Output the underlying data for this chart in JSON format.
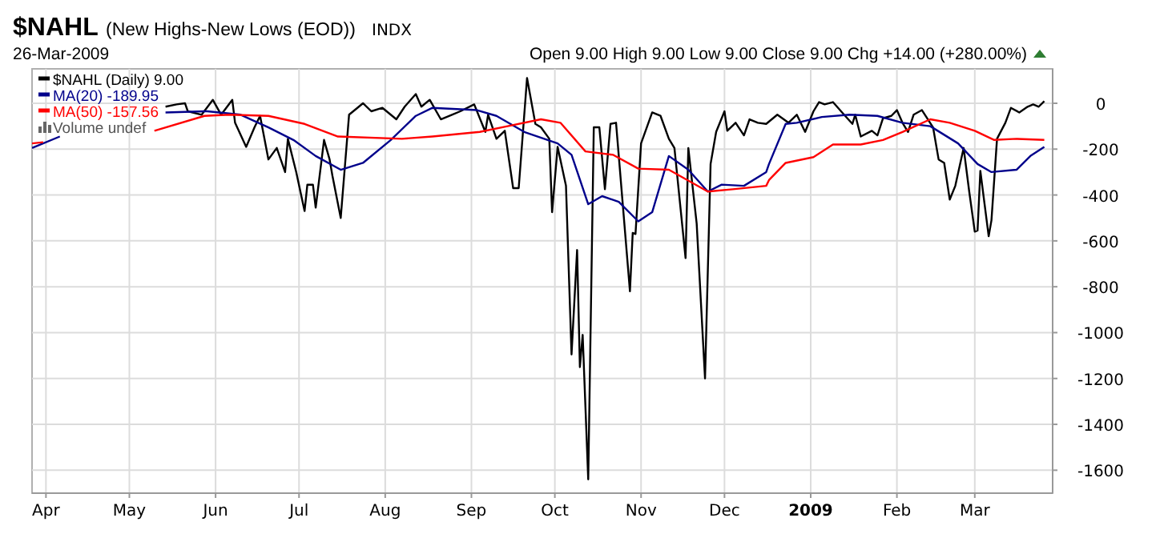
{
  "chart_data": {
    "type": "line",
    "title": "$NAHL",
    "subtitle": "(New Highs-New Lows (EOD))",
    "annotations": [
      "INDX",
      "26-Mar-2009",
      "Open 9.00 High 9.00 Low 9.00 Close 9.00 Chg +14.00 (+280.00%)",
      "Volume undef"
    ],
    "xlim": [
      "2008-03-27",
      "2009-03-29"
    ],
    "xticks": [
      {
        "value": "2008-04-01",
        "label": "Apr"
      },
      {
        "value": "2008-05-01",
        "label": "May"
      },
      {
        "value": "2008-06-01",
        "label": "Jun"
      },
      {
        "value": "2008-07-01",
        "label": "Jul"
      },
      {
        "value": "2008-08-01",
        "label": "Aug"
      },
      {
        "value": "2008-09-01",
        "label": "Sep"
      },
      {
        "value": "2008-10-01",
        "label": "Oct"
      },
      {
        "value": "2008-11-01",
        "label": "Nov"
      },
      {
        "value": "2008-12-01",
        "label": "Dec"
      },
      {
        "value": "2009-01-01",
        "label": "2009"
      },
      {
        "value": "2009-02-01",
        "label": "Feb"
      },
      {
        "value": "2009-03-01",
        "label": "Mar"
      }
    ],
    "ylim": [
      -1700,
      150
    ],
    "yticks": [
      0,
      -200,
      -400,
      -600,
      -800,
      -1000,
      -1200,
      -1400,
      -1600
    ],
    "grid": true,
    "legend": "top left",
    "line_style": "solid",
    "marker": "none",
    "series": [
      {
        "name": "$NAHL (Daily) 9.00",
        "color": "#000000",
        "x": [
          "2008-05-14",
          "2008-05-18",
          "2008-05-21",
          "2008-05-22",
          "2008-05-27",
          "2008-05-31",
          "2008-06-03",
          "2008-06-07",
          "2008-06-08",
          "2008-06-12",
          "2008-06-15",
          "2008-06-17",
          "2008-06-20",
          "2008-06-23",
          "2008-06-26",
          "2008-06-27",
          "2008-06-30",
          "2008-07-03",
          "2008-07-04",
          "2008-07-06",
          "2008-07-07",
          "2008-07-10",
          "2008-07-12",
          "2008-07-13",
          "2008-07-16",
          "2008-07-19",
          "2008-07-22",
          "2008-07-24",
          "2008-07-27",
          "2008-07-31",
          "2008-08-05",
          "2008-08-08",
          "2008-08-12",
          "2008-08-14",
          "2008-08-17",
          "2008-08-21",
          "2008-08-25",
          "2008-08-28",
          "2008-09-02",
          "2008-09-06",
          "2008-09-07",
          "2008-09-10",
          "2008-09-13",
          "2008-09-16",
          "2008-09-18",
          "2008-09-21",
          "2008-09-24",
          "2008-09-26",
          "2008-09-29",
          "2008-09-30",
          "2008-10-02",
          "2008-10-05",
          "2008-10-07",
          "2008-10-09",
          "2008-10-10",
          "2008-10-11",
          "2008-10-13",
          "2008-10-15",
          "2008-10-17",
          "2008-10-19",
          "2008-10-21",
          "2008-10-23",
          "2008-10-28",
          "2008-10-29",
          "2008-10-30",
          "2008-11-01",
          "2008-11-05",
          "2008-11-08",
          "2008-11-11",
          "2008-11-13",
          "2008-11-17",
          "2008-11-18",
          "2008-11-21",
          "2008-11-24",
          "2008-11-26",
          "2008-11-28",
          "2008-12-01",
          "2008-12-02",
          "2008-12-05",
          "2008-12-08",
          "2008-12-10",
          "2008-12-13",
          "2008-12-16",
          "2008-12-20",
          "2008-12-24",
          "2008-12-27",
          "2008-12-30",
          "2009-01-02",
          "2009-01-04",
          "2009-01-06",
          "2009-01-09",
          "2009-01-13",
          "2009-01-16",
          "2009-01-17",
          "2009-01-19",
          "2009-01-23",
          "2009-01-25",
          "2009-01-27",
          "2009-01-30",
          "2009-02-01",
          "2009-02-03",
          "2009-02-05",
          "2009-02-07",
          "2009-02-10",
          "2009-02-14",
          "2009-02-16",
          "2009-02-18",
          "2009-02-20",
          "2009-02-22",
          "2009-02-25",
          "2009-02-27",
          "2009-03-01",
          "2009-03-02",
          "2009-03-03",
          "2009-03-06",
          "2009-03-07",
          "2009-03-09",
          "2009-03-12",
          "2009-03-14",
          "2009-03-17",
          "2009-03-20",
          "2009-03-22",
          "2009-03-24",
          "2009-03-26"
        ],
        "values": [
          -15,
          -5,
          0,
          -35,
          -50,
          15,
          -50,
          15,
          -85,
          -190,
          -105,
          -55,
          -245,
          -195,
          -300,
          -155,
          -300,
          -470,
          -355,
          -355,
          -455,
          -160,
          -245,
          -315,
          -500,
          -50,
          -20,
          0,
          -35,
          -20,
          -70,
          -15,
          40,
          -15,
          15,
          -70,
          -50,
          -35,
          -5,
          -125,
          -50,
          -155,
          -120,
          -370,
          -370,
          110,
          -90,
          -105,
          -155,
          -475,
          -190,
          -360,
          -1095,
          -640,
          -1150,
          -1010,
          -1640,
          -105,
          -105,
          -375,
          -90,
          -85,
          -820,
          -565,
          -570,
          -175,
          -40,
          -55,
          -155,
          -195,
          -675,
          -195,
          -525,
          -1200,
          -265,
          -125,
          -35,
          -120,
          -85,
          -140,
          -70,
          -85,
          -90,
          -50,
          -85,
          -50,
          -125,
          -35,
          5,
          -5,
          5,
          -50,
          -90,
          -50,
          -145,
          -120,
          -140,
          -65,
          -55,
          -30,
          -85,
          -125,
          -50,
          -30,
          -105,
          -245,
          -260,
          -420,
          -360,
          -195,
          -385,
          -560,
          -555,
          -295,
          -580,
          -510,
          -155,
          -85,
          -20,
          -40,
          -15,
          -5,
          -15,
          9
        ]
      },
      {
        "name": "MA(20) -189.95",
        "color": "#00008b",
        "x": [
          "2008-03-27",
          "2008-04-06",
          "2008-04-20",
          "2008-05-14",
          "2008-05-29",
          "2008-06-10",
          "2008-06-20",
          "2008-06-29",
          "2008-07-07",
          "2008-07-16",
          "2008-07-24",
          "2008-08-03",
          "2008-08-12",
          "2008-08-18",
          "2008-09-03",
          "2008-09-10",
          "2008-09-20",
          "2008-10-02",
          "2008-10-07",
          "2008-10-13",
          "2008-10-18",
          "2008-10-24",
          "2008-10-31",
          "2008-11-05",
          "2008-11-11",
          "2008-11-18",
          "2008-11-25",
          "2008-11-30",
          "2008-12-08",
          "2008-12-16",
          "2008-12-17",
          "2008-12-23",
          "2008-12-27",
          "2009-01-05",
          "2009-01-15",
          "2009-01-25",
          "2009-02-03",
          "2009-02-13",
          "2009-02-23",
          "2009-03-02",
          "2009-03-07",
          "2009-03-16",
          "2009-03-21",
          "2009-03-26"
        ],
        "values": [
          -195,
          -145,
          null,
          -40,
          -35,
          -50,
          -105,
          -160,
          -230,
          -290,
          -260,
          -160,
          -55,
          -20,
          -30,
          -55,
          -125,
          -175,
          -225,
          -440,
          -405,
          -430,
          -515,
          -475,
          -230,
          -290,
          -385,
          -355,
          -360,
          -300,
          -265,
          -90,
          -85,
          -60,
          -50,
          -55,
          -85,
          -100,
          -175,
          -265,
          -300,
          -290,
          -230,
          -190
        ]
      },
      {
        "name": "MA(50) -157.56",
        "color": "#ff0000",
        "x": [
          "2008-03-27",
          "2008-03-31",
          "2008-04-20",
          "2008-05-10",
          "2008-05-28",
          "2008-06-06",
          "2008-06-20",
          "2008-07-03",
          "2008-07-15",
          "2008-08-07",
          "2008-08-18",
          "2008-09-04",
          "2008-09-14",
          "2008-09-26",
          "2008-10-03",
          "2008-10-12",
          "2008-10-22",
          "2008-10-31",
          "2008-11-11",
          "2008-11-25",
          "2008-12-04",
          "2008-12-16",
          "2008-12-17",
          "2008-12-23",
          "2009-01-02",
          "2009-01-09",
          "2009-01-19",
          "2009-01-27",
          "2009-02-03",
          "2009-02-13",
          "2009-02-20",
          "2009-03-01",
          "2009-03-08",
          "2009-03-16",
          "2009-03-26"
        ],
        "values": [
          -175,
          -170,
          null,
          -120,
          -55,
          -50,
          -55,
          -90,
          -145,
          -155,
          -145,
          -125,
          -100,
          -70,
          -85,
          -210,
          -225,
          -285,
          -290,
          -385,
          -375,
          -360,
          -335,
          -260,
          -235,
          -180,
          -180,
          -160,
          -125,
          -70,
          -85,
          -120,
          -160,
          -155,
          -160
        ]
      }
    ]
  }
}
